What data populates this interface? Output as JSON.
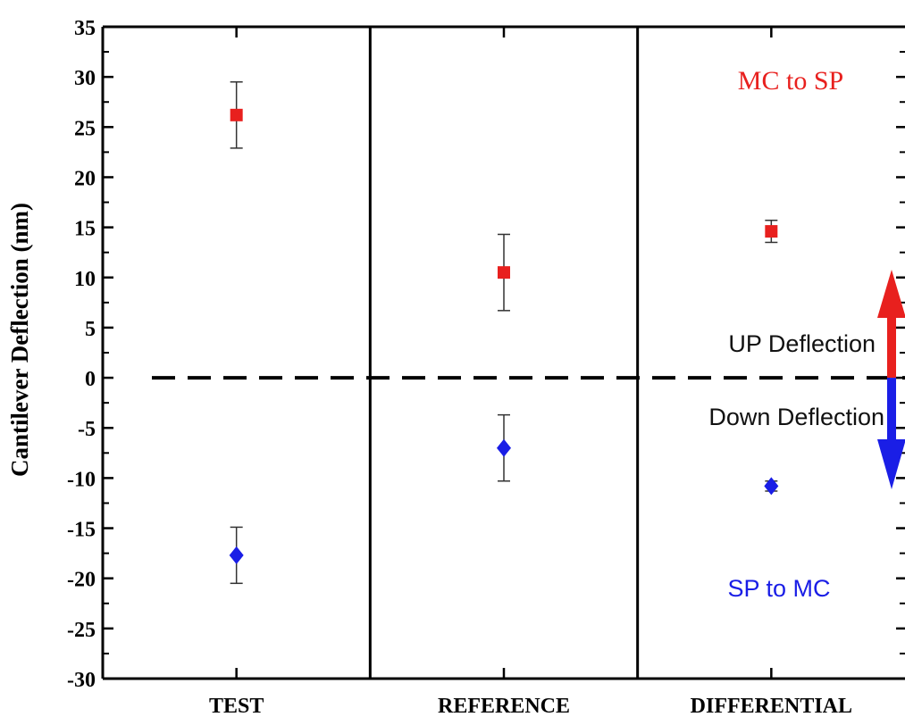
{
  "chart_data": {
    "type": "scatter",
    "ylabel": "Cantilever Deflection (nm)",
    "ylim": [
      -30,
      35
    ],
    "yticks": [
      35,
      30,
      25,
      20,
      15,
      10,
      5,
      0,
      -5,
      -10,
      -15,
      -20,
      -25,
      -30
    ],
    "categories": [
      "TEST",
      "REFERENCE",
      "DIFFERENTIAL"
    ],
    "series": [
      {
        "name": "MC to SP",
        "color": "#e8201e",
        "marker": "square",
        "values": [
          26.2,
          10.5,
          14.6
        ],
        "errors": [
          3.3,
          3.8,
          1.1
        ]
      },
      {
        "name": "SP to MC",
        "color": "#1a1ee6",
        "marker": "diamond",
        "values": [
          -17.7,
          -7.0,
          -10.8
        ],
        "errors": [
          2.8,
          3.3,
          0.5
        ]
      }
    ],
    "reference_line": {
      "y": 0,
      "style": "dashed"
    },
    "annotations": {
      "up": "UP Deflection",
      "down": "Down Deflection"
    },
    "colors": {
      "up_arrow": "#e8201e",
      "down_arrow": "#1a1ee6",
      "axis": "#000000"
    }
  }
}
